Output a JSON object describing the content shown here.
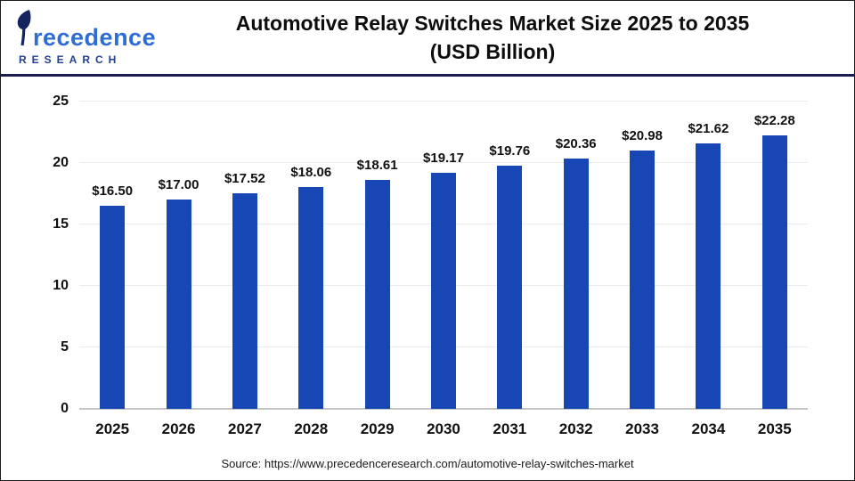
{
  "header": {
    "logo": {
      "brand": "Precedence",
      "brand_rest": "recedence",
      "subtitle": "RESEARCH"
    },
    "title_line1": "Automotive Relay Switches Market Size 2025 to 2035",
    "title_line2": "(USD Billion)"
  },
  "chart_data": {
    "type": "bar",
    "title": "Automotive Relay Switches Market Size 2025 to 2035 (USD Billion)",
    "categories": [
      "2025",
      "2026",
      "2027",
      "2028",
      "2029",
      "2030",
      "2031",
      "2032",
      "2033",
      "2034",
      "2035"
    ],
    "values": [
      16.5,
      17.0,
      17.52,
      18.06,
      18.61,
      19.17,
      19.76,
      20.36,
      20.98,
      21.62,
      22.28
    ],
    "value_label_prefix": "$",
    "xlabel": "",
    "ylabel": "",
    "ylim": [
      0,
      25
    ],
    "yticks": [
      0,
      5,
      10,
      15,
      20,
      25
    ],
    "grid": true,
    "legend": false,
    "bar_color": "#1746b5"
  },
  "footer": {
    "source_text": "Source: https://www.precedenceresearch.com/automotive-relay-switches-market"
  },
  "icons": {
    "logo_leaf": "leaf-p-icon"
  },
  "colors": {
    "bar": "#1746b5",
    "header_divider": "#191d52",
    "logo_navy": "#16255e",
    "logo_blue": "#2e6ed2",
    "gridline": "#ececec",
    "axis_line": "#c6c6c6"
  }
}
